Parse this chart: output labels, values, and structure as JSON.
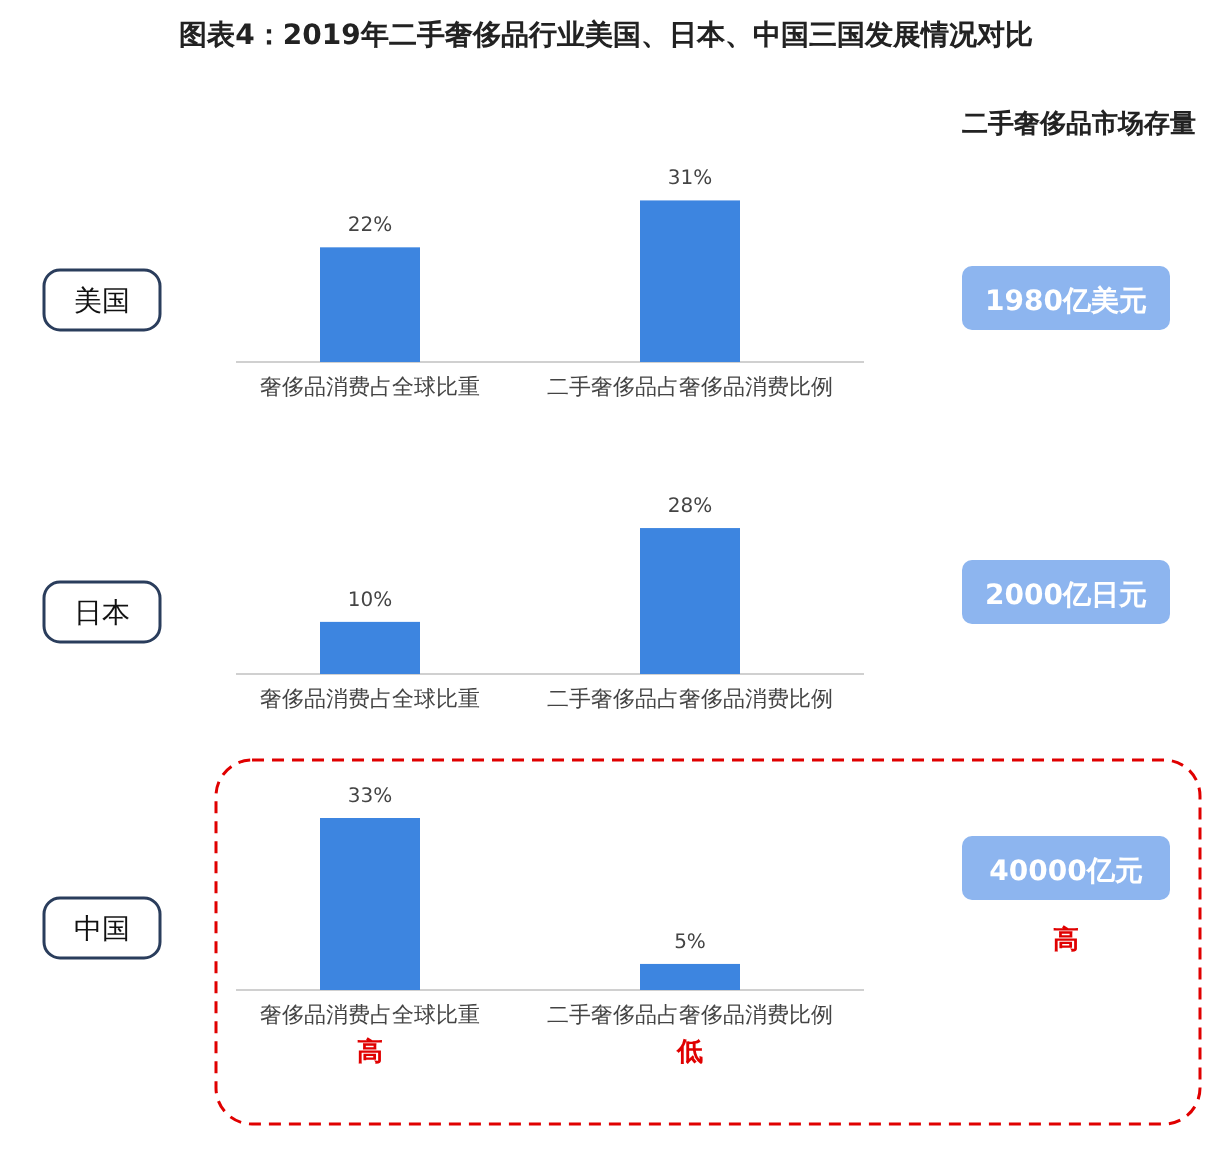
{
  "chart_data": [
    {
      "type": "bar",
      "title": "图表4：2019年二手奢侈品行业美国、日本、中国三国发展情况对比",
      "ylabel": "美国",
      "categories": [
        "奢侈品消费占全球比重",
        "二手奢侈品占奢侈品消费比例"
      ],
      "values": [
        22,
        31
      ],
      "value_labels": [
        "22%",
        "31%"
      ],
      "color": "#3d85e0",
      "annotations": [
        "1980亿美元",
        "二手奢侈品市场存量"
      ]
    },
    {
      "type": "bar",
      "ylabel": "日本",
      "categories": [
        "奢侈品消费占全球比重",
        "二手奢侈品占奢侈品消费比例"
      ],
      "values": [
        10,
        28
      ],
      "value_labels": [
        "10%",
        "28%"
      ],
      "color": "#3d85e0",
      "annotations": [
        "2000亿日元"
      ]
    },
    {
      "type": "bar",
      "ylabel": "中国",
      "categories": [
        "奢侈品消费占全球比重",
        "二手奢侈品占奢侈品消费比例"
      ],
      "values": [
        33,
        5
      ],
      "value_labels": [
        "33%",
        "5%"
      ],
      "color": "#3d85e0",
      "annotations": [
        "40000亿元",
        "高",
        "高",
        "低"
      ]
    }
  ]
}
